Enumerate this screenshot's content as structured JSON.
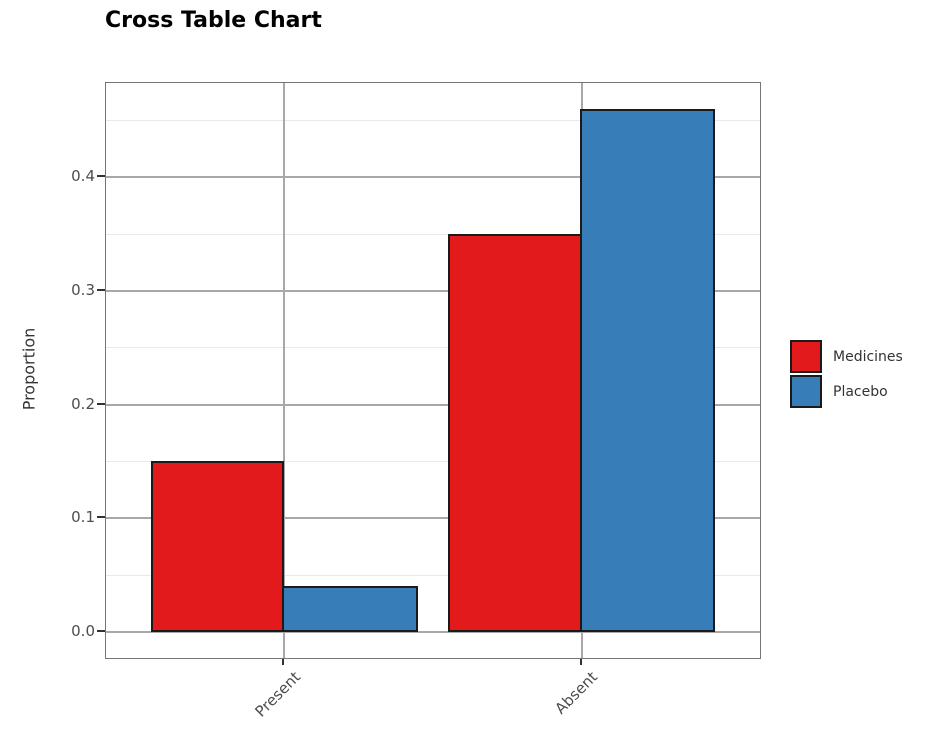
{
  "chart_data": {
    "type": "bar",
    "title": "Cross Table Chart",
    "xlabel": "",
    "ylabel": "Proportion",
    "categories": [
      "Present",
      "Absent"
    ],
    "series": [
      {
        "name": "Medicines",
        "color": "#e31a1c",
        "values": [
          0.15,
          0.35
        ]
      },
      {
        "name": "Placebo",
        "color": "#377eb8",
        "values": [
          0.04,
          0.46
        ]
      }
    ],
    "ylim": [
      -0.023,
      0.483
    ],
    "ytick_labels": [
      "0.0",
      "0.1",
      "0.2",
      "0.3",
      "0.4"
    ],
    "ytick_values": [
      0,
      0.1,
      0.2,
      0.3,
      0.4
    ],
    "yminor_values": [
      0.05,
      0.15,
      0.25,
      0.35,
      0.45
    ],
    "grid": true,
    "legend_position": "right",
    "x_tick_rotation": 45,
    "colors": {
      "bar_border": "#1a1a1a",
      "grid_major": "#a8a8a8",
      "grid_minor": "#e9e9e9",
      "panel_border": "#757575",
      "tick_mark": "#333333",
      "tick_label": "#4d4d4d",
      "axis_title": "#333333",
      "title": "#000000"
    }
  }
}
